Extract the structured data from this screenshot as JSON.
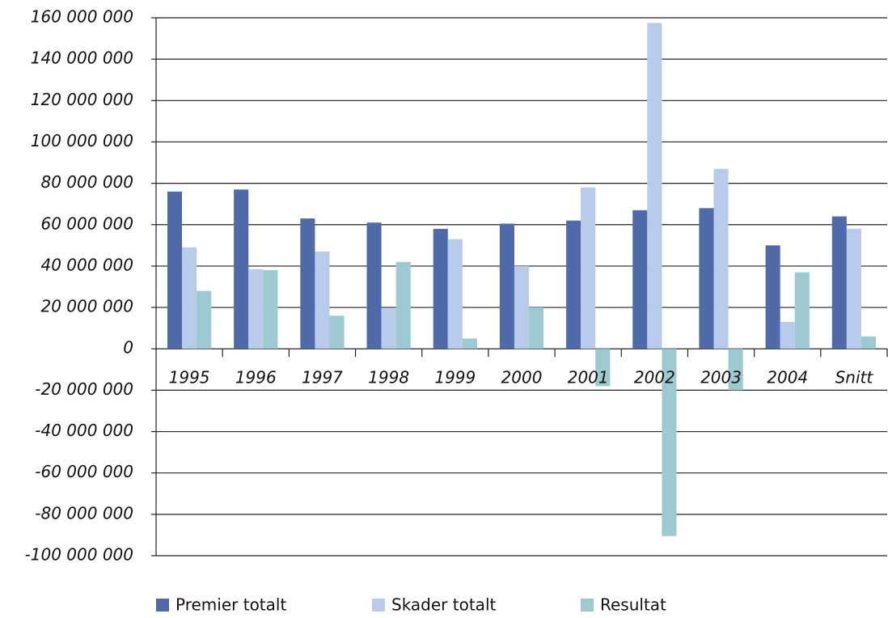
{
  "chart_data": {
    "type": "bar",
    "categories": [
      "1995",
      "1996",
      "1997",
      "1998",
      "1999",
      "2000",
      "2001",
      "2002",
      "2003",
      "2004",
      "Snitt"
    ],
    "series": [
      {
        "name": "Premier totalt",
        "color": "#4f6aa8",
        "values": [
          76000000,
          77000000,
          63000000,
          61000000,
          58000000,
          60500000,
          62000000,
          67000000,
          68000000,
          50000000,
          64000000
        ]
      },
      {
        "name": "Skader totalt",
        "color": "#b8cbea",
        "values": [
          49000000,
          38500000,
          47000000,
          19500000,
          53000000,
          40000000,
          78000000,
          157500000,
          87000000,
          13000000,
          58000000
        ]
      },
      {
        "name": "Resultat",
        "color": "#9ccad0",
        "values": [
          28000000,
          38000000,
          16000000,
          42000000,
          5000000,
          20000000,
          -18000000,
          -90500000,
          -20000000,
          37000000,
          6000000
        ]
      }
    ],
    "ylim": [
      -100000000,
      160000000
    ],
    "yticks": [
      {
        "value": -100000000,
        "label": "-100 000 000"
      },
      {
        "value": -80000000,
        "label": "-80 000 000"
      },
      {
        "value": -60000000,
        "label": "-60 000 000"
      },
      {
        "value": -40000000,
        "label": "-40 000 000"
      },
      {
        "value": -20000000,
        "label": "-20 000 000"
      },
      0,
      {
        "value": 20000000,
        "label": "20 000 000"
      },
      {
        "value": 40000000,
        "label": "40 000 000"
      },
      {
        "value": 60000000,
        "label": "60 000 000"
      },
      {
        "value": 80000000,
        "label": "80 000 000"
      },
      {
        "value": 100000000,
        "label": "100 000 000"
      },
      {
        "value": 120000000,
        "label": "120 000 000"
      },
      {
        "value": 140000000,
        "label": "140 000 000"
      },
      {
        "value": 160000000,
        "label": "160 000 000"
      }
    ],
    "grid": true,
    "legend": "bottom"
  }
}
